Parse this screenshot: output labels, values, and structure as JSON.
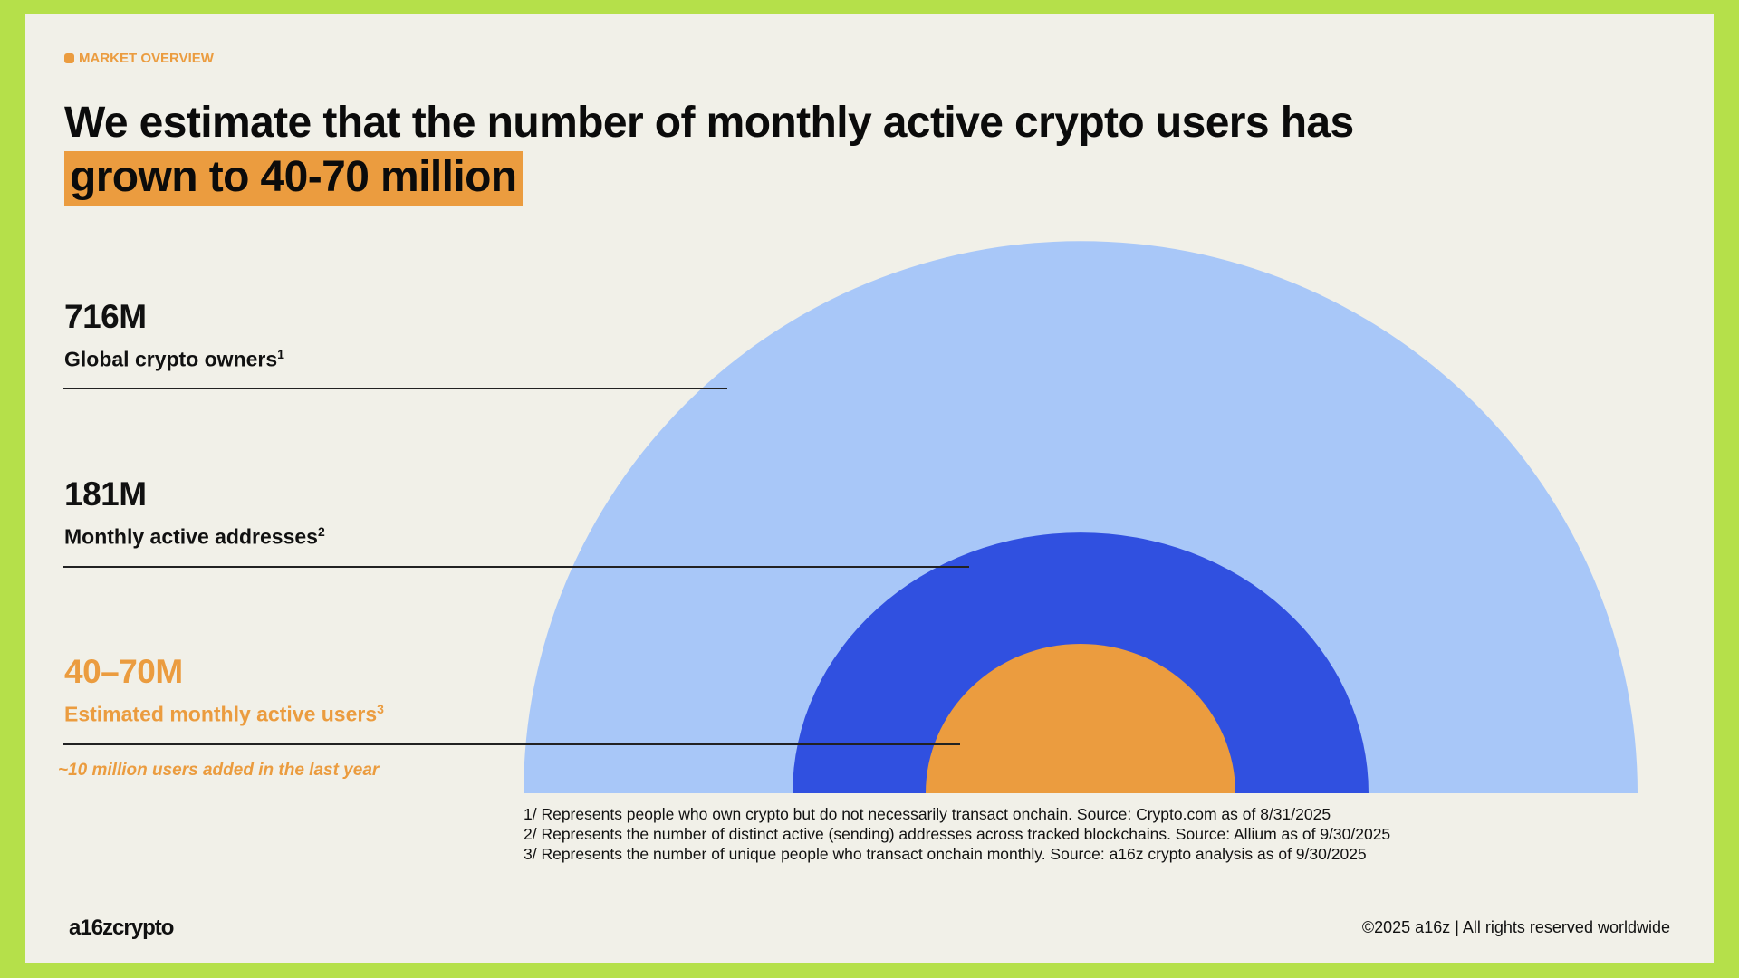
{
  "tag": "MARKET OVERVIEW",
  "title": {
    "prefix": "We estimate that the number of monthly active crypto users has ",
    "highlight": "grown to 40-70 million"
  },
  "stats": [
    {
      "value": "716M",
      "label": "Global crypto owners",
      "sup": "1"
    },
    {
      "value": "181M",
      "label": "Monthly active addresses",
      "sup": "2"
    },
    {
      "value": "40–70M",
      "label": "Estimated monthly active users",
      "sup": "3"
    }
  ],
  "note": "~10 million users added in the last year",
  "footnotes": [
    "1/ Represents people who own crypto but do not necessarily transact onchain. Source: Crypto.com as of 8/31/2025",
    "2/ Represents the number of distinct active (sending) addresses across tracked blockchains. Source: Allium as of 9/30/2025",
    "3/ Represents the number of unique people who transact onchain monthly. Source: a16z crypto analysis as of 9/30/2025"
  ],
  "logo": "a16zcrypto",
  "copyright": "©2025 a16z | All rights reserved worldwide",
  "colors": {
    "frame": "#B5E04A",
    "background": "#F1F0E8",
    "owners": "#A8C7F8",
    "addresses": "#3050E0",
    "users": "#EB9C3F"
  },
  "chart_data": {
    "type": "nested-semicircle",
    "series": [
      {
        "name": "Global crypto owners",
        "value": 716,
        "unit": "M"
      },
      {
        "name": "Monthly active addresses",
        "value": 181,
        "unit": "M"
      },
      {
        "name": "Estimated monthly active users",
        "value": [
          40,
          70
        ],
        "unit": "M"
      }
    ]
  }
}
